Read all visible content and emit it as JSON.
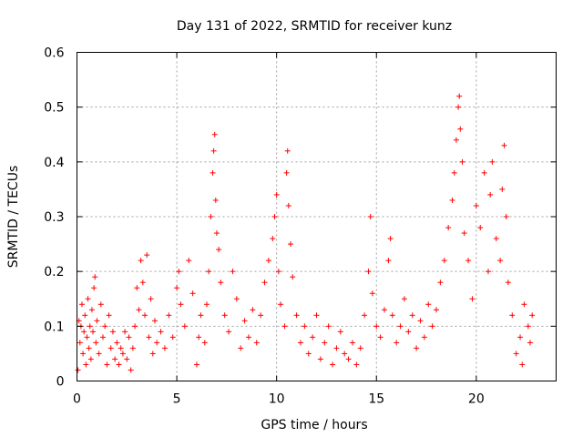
{
  "chart_data": {
    "type": "scatter",
    "title": "Day 131 of 2022, SRMTID for receiver kunz",
    "xlabel": "GPS time / hours",
    "ylabel": "SRMTID / TECUs",
    "xlim": [
      0,
      24
    ],
    "ylim": [
      0,
      0.6
    ],
    "grid": true,
    "marker": "+",
    "color": "#ff0000",
    "x_ticks": [
      0,
      5,
      10,
      15,
      20
    ],
    "x_tick_labels": [
      "0",
      "5",
      "10",
      "15",
      "20"
    ],
    "y_ticks": [
      0,
      0.1,
      0.2,
      0.3,
      0.4,
      0.5,
      0.6
    ],
    "y_tick_labels": [
      "0",
      "0.1",
      "0.2",
      "0.3",
      "0.4",
      "0.5",
      "0.6"
    ],
    "series": [
      {
        "name": "SRMTID",
        "points": [
          [
            0.05,
            0.02
          ],
          [
            0.1,
            0.11
          ],
          [
            0.15,
            0.07
          ],
          [
            0.2,
            0.1
          ],
          [
            0.25,
            0.14
          ],
          [
            0.3,
            0.05
          ],
          [
            0.35,
            0.09
          ],
          [
            0.4,
            0.12
          ],
          [
            0.45,
            0.03
          ],
          [
            0.5,
            0.08
          ],
          [
            0.55,
            0.15
          ],
          [
            0.6,
            0.06
          ],
          [
            0.65,
            0.1
          ],
          [
            0.7,
            0.04
          ],
          [
            0.75,
            0.13
          ],
          [
            0.8,
            0.09
          ],
          [
            0.85,
            0.17
          ],
          [
            0.9,
            0.19
          ],
          [
            0.95,
            0.07
          ],
          [
            1.0,
            0.11
          ],
          [
            1.1,
            0.05
          ],
          [
            1.2,
            0.14
          ],
          [
            1.3,
            0.08
          ],
          [
            1.4,
            0.1
          ],
          [
            1.5,
            0.03
          ],
          [
            1.6,
            0.12
          ],
          [
            1.7,
            0.06
          ],
          [
            1.8,
            0.09
          ],
          [
            1.9,
            0.04
          ],
          [
            2.0,
            0.07
          ],
          [
            2.1,
            0.03
          ],
          [
            2.2,
            0.06
          ],
          [
            2.3,
            0.05
          ],
          [
            2.4,
            0.09
          ],
          [
            2.5,
            0.04
          ],
          [
            2.6,
            0.08
          ],
          [
            2.7,
            0.02
          ],
          [
            2.8,
            0.06
          ],
          [
            2.9,
            0.1
          ],
          [
            3.0,
            0.17
          ],
          [
            3.1,
            0.13
          ],
          [
            3.2,
            0.22
          ],
          [
            3.3,
            0.18
          ],
          [
            3.4,
            0.12
          ],
          [
            3.5,
            0.23
          ],
          [
            3.6,
            0.08
          ],
          [
            3.7,
            0.15
          ],
          [
            3.8,
            0.05
          ],
          [
            3.9,
            0.11
          ],
          [
            4.0,
            0.07
          ],
          [
            4.2,
            0.09
          ],
          [
            4.4,
            0.06
          ],
          [
            4.6,
            0.12
          ],
          [
            4.8,
            0.08
          ],
          [
            5.0,
            0.17
          ],
          [
            5.1,
            0.2
          ],
          [
            5.2,
            0.14
          ],
          [
            5.4,
            0.1
          ],
          [
            5.6,
            0.22
          ],
          [
            5.8,
            0.16
          ],
          [
            6.0,
            0.03
          ],
          [
            6.1,
            0.08
          ],
          [
            6.2,
            0.12
          ],
          [
            6.4,
            0.07
          ],
          [
            6.5,
            0.14
          ],
          [
            6.6,
            0.2
          ],
          [
            6.7,
            0.3
          ],
          [
            6.8,
            0.38
          ],
          [
            6.85,
            0.42
          ],
          [
            6.9,
            0.45
          ],
          [
            6.95,
            0.33
          ],
          [
            7.0,
            0.27
          ],
          [
            7.1,
            0.24
          ],
          [
            7.2,
            0.18
          ],
          [
            7.4,
            0.12
          ],
          [
            7.6,
            0.09
          ],
          [
            7.8,
            0.2
          ],
          [
            8.0,
            0.15
          ],
          [
            8.2,
            0.06
          ],
          [
            8.4,
            0.11
          ],
          [
            8.6,
            0.08
          ],
          [
            8.8,
            0.13
          ],
          [
            9.0,
            0.07
          ],
          [
            9.2,
            0.12
          ],
          [
            9.4,
            0.18
          ],
          [
            9.6,
            0.22
          ],
          [
            9.8,
            0.26
          ],
          [
            9.9,
            0.3
          ],
          [
            10.0,
            0.34
          ],
          [
            10.1,
            0.2
          ],
          [
            10.2,
            0.14
          ],
          [
            10.4,
            0.1
          ],
          [
            10.5,
            0.38
          ],
          [
            10.55,
            0.42
          ],
          [
            10.6,
            0.32
          ],
          [
            10.7,
            0.25
          ],
          [
            10.8,
            0.19
          ],
          [
            11.0,
            0.12
          ],
          [
            11.2,
            0.07
          ],
          [
            11.4,
            0.1
          ],
          [
            11.6,
            0.05
          ],
          [
            11.8,
            0.08
          ],
          [
            12.0,
            0.12
          ],
          [
            12.2,
            0.04
          ],
          [
            12.4,
            0.07
          ],
          [
            12.6,
            0.1
          ],
          [
            12.8,
            0.03
          ],
          [
            13.0,
            0.06
          ],
          [
            13.2,
            0.09
          ],
          [
            13.4,
            0.05
          ],
          [
            13.6,
            0.04
          ],
          [
            13.8,
            0.07
          ],
          [
            14.0,
            0.03
          ],
          [
            14.2,
            0.06
          ],
          [
            14.4,
            0.12
          ],
          [
            14.6,
            0.2
          ],
          [
            14.7,
            0.3
          ],
          [
            14.8,
            0.16
          ],
          [
            15.0,
            0.1
          ],
          [
            15.2,
            0.08
          ],
          [
            15.4,
            0.13
          ],
          [
            15.6,
            0.22
          ],
          [
            15.7,
            0.26
          ],
          [
            15.8,
            0.12
          ],
          [
            16.0,
            0.07
          ],
          [
            16.2,
            0.1
          ],
          [
            16.4,
            0.15
          ],
          [
            16.6,
            0.09
          ],
          [
            16.8,
            0.12
          ],
          [
            17.0,
            0.06
          ],
          [
            17.2,
            0.11
          ],
          [
            17.4,
            0.08
          ],
          [
            17.6,
            0.14
          ],
          [
            17.8,
            0.1
          ],
          [
            18.0,
            0.13
          ],
          [
            18.2,
            0.18
          ],
          [
            18.4,
            0.22
          ],
          [
            18.6,
            0.28
          ],
          [
            18.8,
            0.33
          ],
          [
            18.9,
            0.38
          ],
          [
            19.0,
            0.44
          ],
          [
            19.1,
            0.5
          ],
          [
            19.15,
            0.52
          ],
          [
            19.2,
            0.46
          ],
          [
            19.3,
            0.4
          ],
          [
            19.4,
            0.27
          ],
          [
            19.6,
            0.22
          ],
          [
            19.8,
            0.15
          ],
          [
            20.0,
            0.32
          ],
          [
            20.2,
            0.28
          ],
          [
            20.4,
            0.38
          ],
          [
            20.6,
            0.2
          ],
          [
            20.7,
            0.34
          ],
          [
            20.8,
            0.4
          ],
          [
            21.0,
            0.26
          ],
          [
            21.2,
            0.22
          ],
          [
            21.3,
            0.35
          ],
          [
            21.4,
            0.43
          ],
          [
            21.5,
            0.3
          ],
          [
            21.6,
            0.18
          ],
          [
            21.8,
            0.12
          ],
          [
            22.0,
            0.05
          ],
          [
            22.2,
            0.08
          ],
          [
            22.3,
            0.03
          ],
          [
            22.4,
            0.14
          ],
          [
            22.6,
            0.1
          ],
          [
            22.7,
            0.07
          ],
          [
            22.8,
            0.12
          ]
        ]
      }
    ]
  }
}
